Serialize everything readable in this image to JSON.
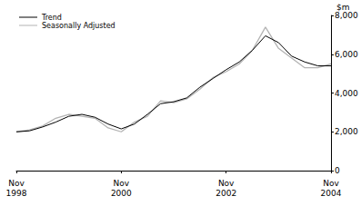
{
  "chart_data": {
    "type": "line",
    "y_label": "$m",
    "categories": [
      "Nov\n1998",
      null,
      null,
      null,
      null,
      null,
      null,
      null,
      "Nov\n2000",
      null,
      null,
      null,
      null,
      null,
      null,
      null,
      "Nov\n2002",
      null,
      null,
      null,
      null,
      null,
      null,
      null,
      "Nov\n2004"
    ],
    "series": [
      {
        "name": "Trend",
        "color": "#000000",
        "values": [
          2000,
          2050,
          2250,
          2500,
          2800,
          2900,
          2750,
          2400,
          2150,
          2400,
          2900,
          3450,
          3550,
          3750,
          4300,
          4750,
          5200,
          5600,
          6200,
          6950,
          6600,
          5900,
          5600,
          5400,
          5400
        ]
      },
      {
        "name": "Seasonally Adjusted",
        "color": "#b3b3b3",
        "values": [
          2000,
          2100,
          2300,
          2700,
          2900,
          2800,
          2700,
          2200,
          2000,
          2500,
          2800,
          3600,
          3500,
          3700,
          4200,
          4800,
          5100,
          5500,
          6200,
          7400,
          6300,
          5800,
          5300,
          5300,
          5500
        ]
      }
    ],
    "ylim": [
      0,
      8000
    ],
    "yticks": [
      0,
      2000,
      4000,
      6000,
      8000
    ],
    "grid": false,
    "legend": "top-left"
  }
}
